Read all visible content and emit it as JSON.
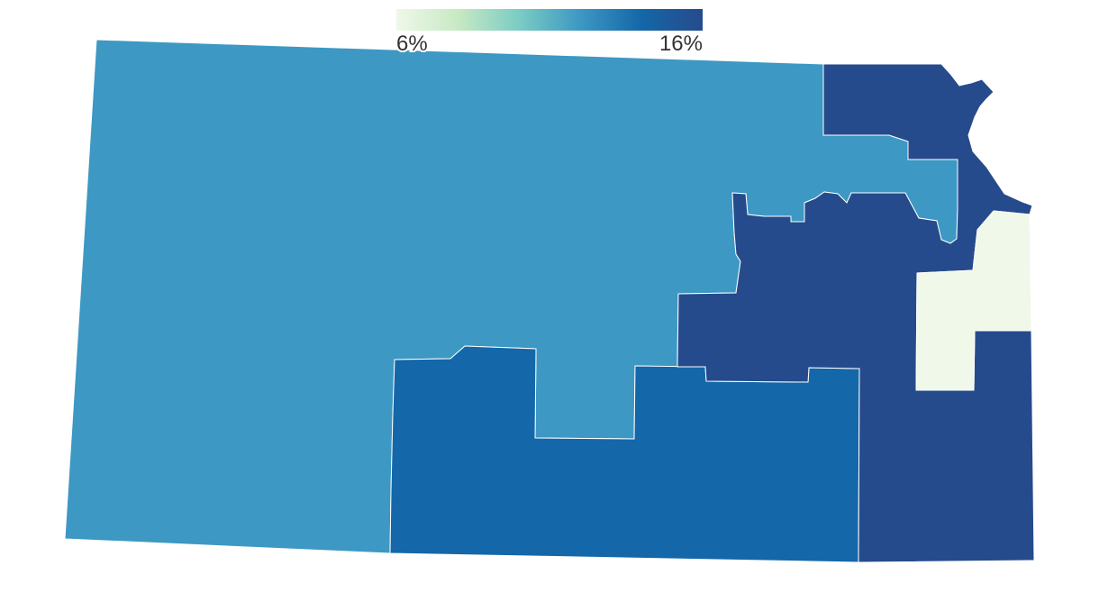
{
  "chart_data": {
    "type": "choropleth",
    "legend_lim": [
      6,
      16
    ],
    "legend_ticks": [
      {
        "value": 6,
        "label": "6%"
      },
      {
        "value": 16,
        "label": "16%"
      }
    ],
    "colors": [
      "#eff8e9",
      "#c8e9c4",
      "#7bccc4",
      "#3d98c3",
      "#1467a9",
      "#264b8c"
    ],
    "values": [
      12,
      14,
      16,
      6
    ]
  }
}
